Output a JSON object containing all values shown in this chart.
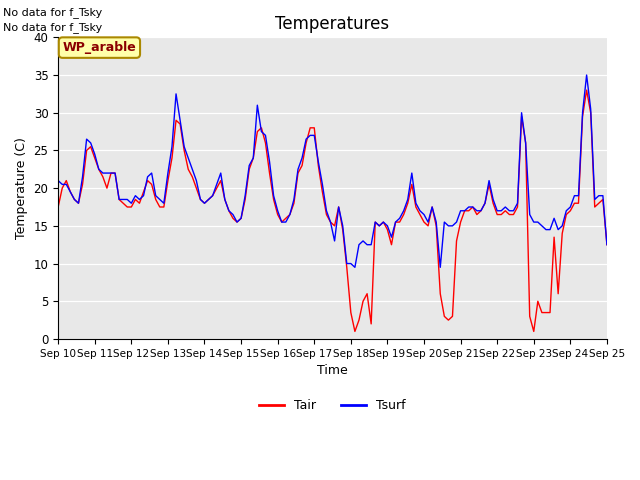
{
  "title": "Temperatures",
  "xlabel": "Time",
  "ylabel": "Temperature (C)",
  "ylim": [
    0,
    40
  ],
  "xlim": [
    0,
    15
  ],
  "xtick_labels": [
    "Sep 10",
    "Sep 11",
    "Sep 12",
    "Sep 13",
    "Sep 14",
    "Sep 15",
    "Sep 16",
    "Sep 17",
    "Sep 18",
    "Sep 19",
    "Sep 20",
    "Sep 21",
    "Sep 22",
    "Sep 23",
    "Sep 24",
    "Sep 25"
  ],
  "ytick_values": [
    0,
    5,
    10,
    15,
    20,
    25,
    30,
    35,
    40
  ],
  "no_data_text1": "No data for f_Tsky",
  "no_data_text2": "No data for f_Tsky",
  "wp_arable_label": "WP_arable",
  "tair_color": "#ff0000",
  "tsurf_color": "#0000ff",
  "bg_color": "#e8e8e8",
  "legend_tair": "Tair",
  "legend_tsurf": "Tsurf",
  "tair": [
    17.5,
    20.0,
    21.0,
    19.5,
    18.5,
    18.0,
    20.5,
    25.0,
    25.5,
    24.0,
    22.5,
    21.5,
    20.0,
    22.0,
    22.0,
    18.5,
    18.0,
    17.5,
    17.5,
    18.5,
    18.0,
    19.5,
    21.0,
    20.5,
    18.5,
    17.5,
    17.5,
    21.0,
    24.0,
    29.0,
    28.5,
    25.0,
    22.5,
    21.5,
    20.0,
    18.5,
    18.0,
    18.5,
    19.0,
    20.0,
    21.0,
    18.5,
    17.0,
    16.0,
    15.5,
    16.0,
    18.5,
    22.5,
    24.0,
    27.5,
    28.0,
    26.0,
    22.0,
    18.5,
    16.5,
    15.5,
    16.0,
    16.5,
    18.0,
    22.0,
    23.0,
    26.0,
    28.0,
    28.0,
    23.0,
    19.5,
    16.5,
    15.5,
    15.0,
    17.5,
    14.5,
    9.5,
    3.5,
    1.0,
    2.5,
    5.0,
    6.0,
    2.0,
    15.5,
    15.0,
    15.5,
    14.5,
    12.5,
    15.5,
    15.5,
    16.5,
    18.0,
    20.5,
    17.5,
    16.5,
    15.5,
    15.0,
    17.5,
    15.0,
    6.0,
    3.0,
    2.5,
    3.0,
    13.0,
    15.5,
    17.0,
    17.0,
    17.5,
    16.5,
    17.0,
    18.0,
    20.5,
    18.0,
    16.5,
    16.5,
    17.0,
    16.5,
    16.5,
    17.5,
    29.5,
    26.0,
    3.0,
    1.0,
    5.0,
    3.5,
    3.5,
    3.5,
    13.5,
    6.0,
    14.0,
    16.5,
    17.0,
    18.0,
    18.0,
    29.5,
    33.0,
    30.0,
    17.5,
    18.0,
    18.5,
    12.5
  ],
  "tsurf": [
    21.0,
    20.5,
    20.5,
    19.5,
    18.5,
    18.0,
    21.5,
    26.5,
    26.0,
    24.5,
    22.5,
    22.0,
    22.0,
    22.0,
    22.0,
    18.5,
    18.5,
    18.5,
    18.0,
    19.0,
    18.5,
    19.0,
    21.5,
    22.0,
    19.0,
    18.5,
    18.0,
    22.0,
    25.5,
    32.5,
    29.0,
    25.5,
    24.0,
    22.5,
    21.0,
    18.5,
    18.0,
    18.5,
    19.0,
    20.5,
    22.0,
    18.5,
    17.0,
    16.5,
    15.5,
    16.0,
    19.0,
    23.0,
    24.0,
    31.0,
    27.5,
    27.0,
    23.5,
    19.0,
    17.0,
    15.5,
    15.5,
    16.5,
    18.5,
    22.5,
    24.0,
    26.5,
    27.0,
    27.0,
    23.5,
    20.5,
    17.0,
    15.5,
    13.0,
    17.5,
    15.0,
    10.0,
    10.0,
    9.5,
    12.5,
    13.0,
    12.5,
    12.5,
    15.5,
    15.0,
    15.5,
    15.0,
    13.5,
    15.5,
    16.0,
    17.0,
    18.5,
    22.0,
    18.0,
    17.0,
    16.5,
    15.5,
    17.5,
    15.5,
    9.5,
    15.5,
    15.0,
    15.0,
    15.5,
    17.0,
    17.0,
    17.5,
    17.5,
    17.0,
    17.0,
    18.0,
    21.0,
    18.5,
    17.0,
    17.0,
    17.5,
    17.0,
    17.0,
    18.0,
    30.0,
    26.0,
    16.5,
    15.5,
    15.5,
    15.0,
    14.5,
    14.5,
    16.0,
    14.5,
    15.0,
    17.0,
    17.5,
    19.0,
    19.0,
    30.0,
    35.0,
    30.5,
    18.5,
    19.0,
    19.0,
    12.5
  ]
}
